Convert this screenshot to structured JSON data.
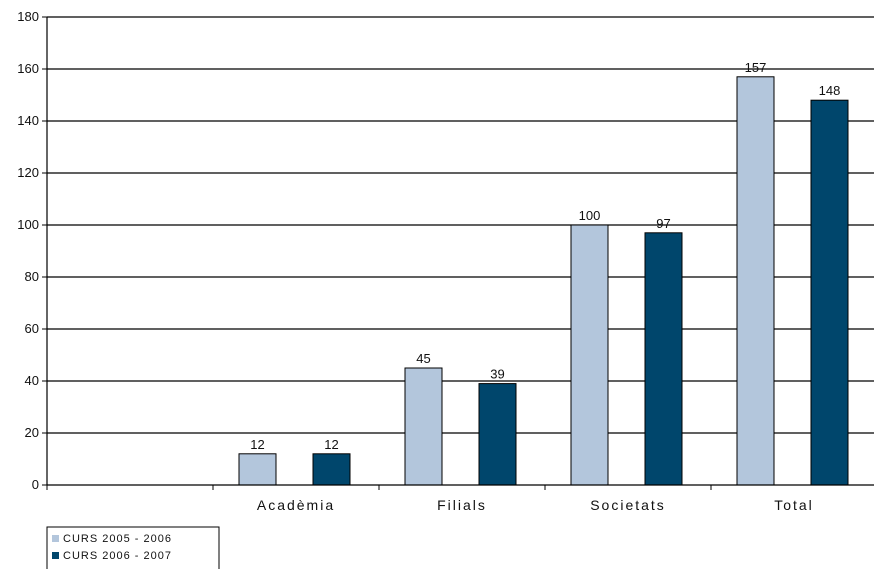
{
  "chart_data": {
    "type": "bar",
    "categories": [
      "",
      "Acadèmia",
      "Filials",
      "Societats",
      "Total"
    ],
    "series": [
      {
        "name": "CURS 2005 - 2006",
        "values": [
          null,
          12,
          45,
          100,
          157
        ],
        "color": "#b3c6dc"
      },
      {
        "name": "CURS 2006 - 2007",
        "values": [
          null,
          12,
          39,
          97,
          148
        ],
        "color": "#00466c"
      }
    ],
    "title": "",
    "xlabel": "",
    "ylabel": "",
    "ylim": [
      0,
      180
    ],
    "yticks": [
      0,
      20,
      40,
      60,
      80,
      100,
      120,
      140,
      160,
      180
    ],
    "grid": true,
    "legend_position": "bottom-left"
  }
}
